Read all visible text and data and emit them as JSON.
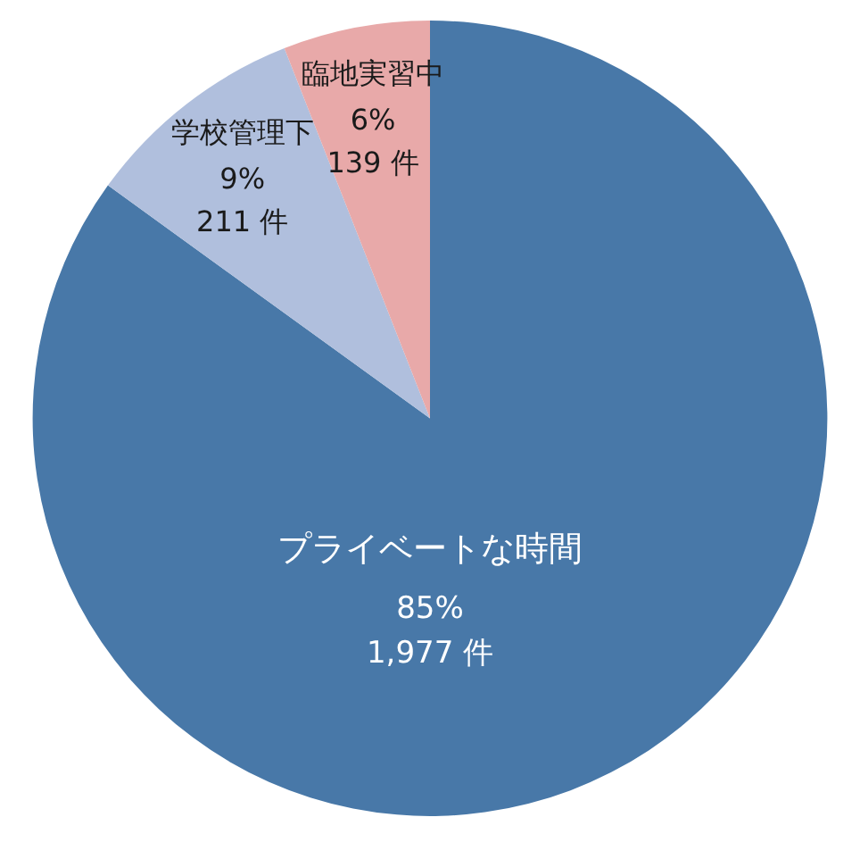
{
  "chart_data": {
    "type": "pie",
    "categories": [
      "プライベートな時間",
      "学校管理下",
      "臨地実習中"
    ],
    "values": [
      1977,
      211,
      139
    ],
    "colors": [
      "#4878a8",
      "#b0bfdd",
      "#e8a9a9"
    ],
    "value_labels": [
      "85%\n1,977 件",
      "9%\n211 件",
      "6%\n139 件"
    ]
  }
}
